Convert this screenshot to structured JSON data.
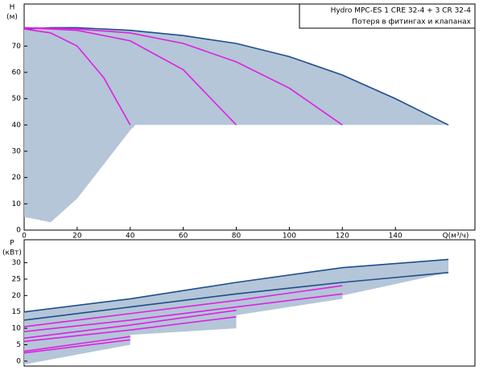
{
  "chart_data": [
    {
      "type": "line",
      "title": "Hydro MPC-ES 1 CRE 32-4  +  3 CR 32-4",
      "annotation": "Потеря в фитингах и клапанах",
      "ylabel": "H",
      "yunit": "(м)",
      "xlabel": "Q(м³/ч)",
      "xlim": [
        0,
        170
      ],
      "ylim": [
        0,
        86
      ],
      "xticks": [
        0,
        20,
        40,
        60,
        80,
        100,
        120,
        140
      ],
      "yticks": [
        0,
        10,
        20,
        30,
        40,
        50,
        60,
        70
      ],
      "grid": false,
      "region": {
        "color": "#b4c6d8",
        "x": [
          0,
          20,
          40,
          60,
          80,
          100,
          120,
          140,
          160,
          120,
          80,
          42,
          40,
          30,
          20,
          10,
          0
        ],
        "y": [
          76.5,
          77,
          76,
          74,
          71,
          66,
          59,
          50,
          40,
          40,
          40,
          40,
          38,
          25,
          12,
          3,
          5
        ]
      },
      "series": [
        {
          "color": "#1f4e8c",
          "x": [
            0,
            10,
            20,
            40,
            60,
            80,
            100,
            120,
            140,
            160
          ],
          "values": [
            76.5,
            77,
            77,
            76,
            74,
            71,
            66,
            59,
            50,
            40
          ]
        },
        {
          "color": "#e020e0",
          "x": [
            0,
            10,
            20,
            30,
            40
          ],
          "values": [
            76.5,
            75,
            70,
            58,
            40
          ]
        },
        {
          "color": "#e020e0",
          "x": [
            0,
            20,
            40,
            60,
            80
          ],
          "values": [
            77,
            76,
            72,
            61,
            40
          ]
        },
        {
          "color": "#e020e0",
          "x": [
            0,
            20,
            40,
            60,
            80,
            100,
            120
          ],
          "values": [
            77,
            76.5,
            75,
            71,
            64,
            54,
            40
          ]
        }
      ]
    },
    {
      "type": "line",
      "ylabel": "P",
      "yunit": "(кВт)",
      "xlim": [
        0,
        170
      ],
      "ylim": [
        -1.5,
        37
      ],
      "yticks": [
        0,
        5,
        10,
        15,
        20,
        25,
        30
      ],
      "grid": false,
      "region": {
        "color": "#b4c6d8",
        "x": [
          0,
          40,
          80,
          120,
          160,
          160,
          120,
          120,
          80,
          80,
          40,
          40,
          0
        ],
        "y": [
          15,
          19,
          24,
          28.5,
          31,
          27,
          20,
          19,
          14,
          10,
          8,
          5,
          -1
        ]
      },
      "series": [
        {
          "color": "#1f4e8c",
          "x": [
            0,
            40,
            80,
            120,
            160
          ],
          "values": [
            15,
            19,
            24,
            28.5,
            31
          ]
        },
        {
          "color": "#1f4e8c",
          "x": [
            0,
            40,
            80,
            120,
            160
          ],
          "values": [
            12.5,
            16.5,
            20.5,
            24,
            27
          ]
        },
        {
          "color": "#e020e0",
          "x": [
            0,
            40,
            80,
            120
          ],
          "values": [
            10.5,
            14.5,
            18.5,
            23
          ]
        },
        {
          "color": "#e020e0",
          "x": [
            0,
            40,
            80,
            120
          ],
          "values": [
            9,
            12.5,
            16.5,
            20.5
          ]
        },
        {
          "color": "#e020e0",
          "x": [
            0,
            40,
            80
          ],
          "values": [
            7,
            11,
            15.5
          ]
        },
        {
          "color": "#e020e0",
          "x": [
            0,
            40,
            80
          ],
          "values": [
            6,
            9.5,
            13.5
          ]
        },
        {
          "color": "#e020e0",
          "x": [
            0,
            40
          ],
          "values": [
            3,
            7.5
          ]
        },
        {
          "color": "#e020e0",
          "x": [
            0,
            40
          ],
          "values": [
            2.5,
            6.5
          ]
        }
      ]
    }
  ]
}
